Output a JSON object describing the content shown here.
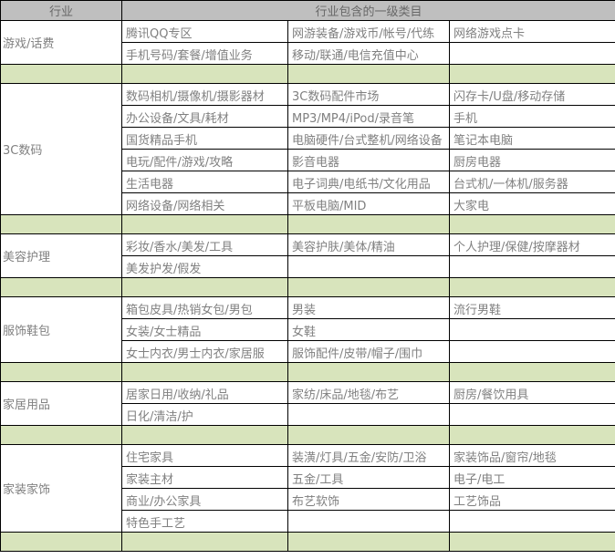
{
  "table": {
    "header": {
      "industry": "行业",
      "categories": "行业包含的一级类目"
    },
    "sections": [
      {
        "industry": "游戏/话费",
        "rows": [
          [
            "腾讯QQ专区",
            "网游装备/游戏币/帐号/代练",
            "网络游戏点卡"
          ],
          [
            "手机号码/套餐/增值业务",
            "移动/联通/电信充值中心",
            ""
          ]
        ]
      },
      {
        "industry": "3C数码",
        "rows": [
          [
            "数码相机/摄像机/摄影器材",
            "3C数码配件市场",
            "闪存卡/U盘/移动存储"
          ],
          [
            "办公设备/文具/耗材",
            "MP3/MP4/iPod/录音笔",
            "手机"
          ],
          [
            "国货精品手机",
            "电脑硬件/台式整机/网络设备",
            "笔记本电脑"
          ],
          [
            "电玩/配件/游戏/攻略",
            "影音电器",
            "厨房电器"
          ],
          [
            "生活电器",
            "电子词典/电纸书/文化用品",
            "台式机/一体机/服务器"
          ],
          [
            "网络设备/网络相关",
            "平板电脑/MID",
            "大家电"
          ]
        ]
      },
      {
        "industry": "美容护理",
        "rows": [
          [
            "彩妆/香水/美发/工具",
            "美容护肤/美体/精油",
            "个人护理/保健/按摩器材"
          ],
          [
            "美发护发/假发",
            "",
            ""
          ]
        ]
      },
      {
        "industry": "服饰鞋包",
        "rows": [
          [
            "箱包皮具/热销女包/男包",
            "男装",
            "流行男鞋"
          ],
          [
            "女装/女士精品",
            "女鞋",
            ""
          ],
          [
            "女士内衣/男士内衣/家居服",
            "服饰配件/皮带/帽子/围巾",
            ""
          ]
        ]
      },
      {
        "industry": "家居用品",
        "rows": [
          [
            "居家日用/收纳/礼品",
            "家纺/床品/地毯/布艺",
            "厨房/餐饮用具"
          ],
          [
            "日化/清洁/护",
            "",
            ""
          ]
        ]
      },
      {
        "industry": "家装家饰",
        "rows": [
          [
            "住宅家具",
            "装潢/灯具/五金/安防/卫浴",
            "家装饰品/窗帘/地毯"
          ],
          [
            "家装主材",
            "五金/工具",
            "电子/电工"
          ],
          [
            "商业/办公家具",
            "布艺软饰",
            "工艺饰品"
          ],
          [
            "特色手工艺",
            "",
            ""
          ]
        ]
      }
    ]
  },
  "colors": {
    "header_bg": "#bfbfbf",
    "separator_bg": "#d8e4bc",
    "text": "#808080",
    "header_text": "#686868",
    "border": "#000000"
  }
}
